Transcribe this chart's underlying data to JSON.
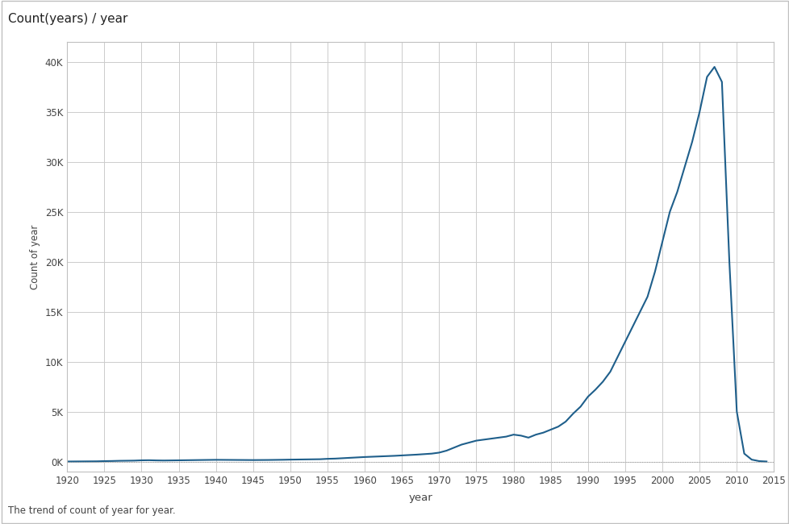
{
  "title": "Count(years) / year",
  "xlabel": "year",
  "ylabel": "Count of year",
  "caption": "The trend of count of year for year.",
  "line_color": "#1f5f8b",
  "background_color": "#ffffff",
  "grid_color": "#cccccc",
  "border_color": "#c0c0c0",
  "xlim": [
    1920,
    2015
  ],
  "ylim": [
    -1000,
    42000
  ],
  "xticks": [
    1920,
    1925,
    1930,
    1935,
    1940,
    1945,
    1950,
    1955,
    1960,
    1965,
    1970,
    1975,
    1980,
    1985,
    1990,
    1995,
    2000,
    2005,
    2010,
    2015
  ],
  "yticks": [
    0,
    5000,
    10000,
    15000,
    20000,
    25000,
    30000,
    35000,
    40000
  ],
  "ytick_labels": [
    "0K",
    "5K",
    "10K",
    "15K",
    "20K",
    "25K",
    "30K",
    "35K",
    "40K"
  ],
  "data": {
    "years": [
      1920,
      1921,
      1922,
      1923,
      1924,
      1925,
      1926,
      1927,
      1928,
      1929,
      1930,
      1931,
      1932,
      1933,
      1934,
      1935,
      1936,
      1937,
      1938,
      1939,
      1940,
      1941,
      1942,
      1943,
      1944,
      1945,
      1946,
      1947,
      1948,
      1949,
      1950,
      1951,
      1952,
      1953,
      1954,
      1955,
      1956,
      1957,
      1958,
      1959,
      1960,
      1961,
      1962,
      1963,
      1964,
      1965,
      1966,
      1967,
      1968,
      1969,
      1970,
      1971,
      1972,
      1973,
      1974,
      1975,
      1976,
      1977,
      1978,
      1979,
      1980,
      1981,
      1982,
      1983,
      1984,
      1985,
      1986,
      1987,
      1988,
      1989,
      1990,
      1991,
      1992,
      1993,
      1994,
      1995,
      1996,
      1997,
      1998,
      1999,
      2000,
      2001,
      2002,
      2003,
      2004,
      2005,
      2006,
      2007,
      2008,
      2009,
      2010,
      2011,
      2012,
      2013,
      2014
    ],
    "counts": [
      10,
      15,
      20,
      25,
      30,
      50,
      60,
      80,
      90,
      100,
      130,
      140,
      120,
      110,
      120,
      130,
      140,
      150,
      160,
      170,
      180,
      175,
      170,
      165,
      160,
      155,
      160,
      165,
      175,
      185,
      200,
      210,
      220,
      230,
      240,
      280,
      300,
      340,
      380,
      420,
      460,
      490,
      520,
      550,
      580,
      620,
      660,
      700,
      750,
      800,
      900,
      1100,
      1400,
      1700,
      1900,
      2100,
      2200,
      2300,
      2400,
      2500,
      2700,
      2600,
      2400,
      2700,
      2900,
      3200,
      3500,
      4000,
      4800,
      5500,
      6500,
      7200,
      8000,
      9000,
      10500,
      12000,
      13500,
      15000,
      16500,
      19000,
      22000,
      25000,
      27000,
      29500,
      32000,
      35000,
      38500,
      39500,
      38000,
      20000,
      5000,
      800,
      200,
      50,
      10
    ]
  }
}
